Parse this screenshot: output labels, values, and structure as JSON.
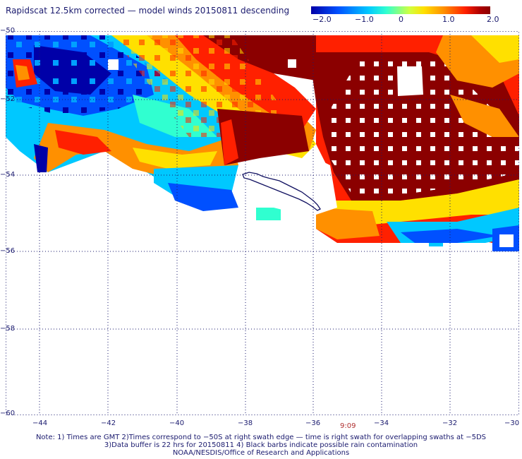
{
  "title": "Rapidscat 12.5km corrected — model winds 20150811 descending",
  "colorbar": {
    "labels": [
      "−2.0",
      "−1.0",
      "0",
      "1.0",
      "2.0"
    ],
    "range": [
      -2.0,
      2.0
    ]
  },
  "map": {
    "lon_range": [
      -45,
      -30
    ],
    "lat_range": [
      -60,
      -50
    ],
    "lon_ticks": [
      "−44",
      "−42",
      "−40",
      "−38",
      "−36",
      "−34",
      "−32",
      "−30"
    ],
    "lat_ticks": [
      "−50",
      "−52",
      "−54",
      "−56",
      "−58",
      "−60"
    ],
    "grid": "dotted",
    "coastline": "South Georgia island",
    "colors": {
      "dark_red": "#8b0000",
      "red": "#ff2000",
      "orange": "#ff9000",
      "yellow": "#ffe000",
      "cyan": "#00d0ff",
      "blue": "#0050ff",
      "dark_blue": "#0000a8"
    }
  },
  "time_label": "9:09",
  "note_lines": [
    "Note: 1) Times are GMT 2)Times correspond to −50S at right swath edge — time is right swath for overlapping swaths at −5DS",
    "3)Data buffer is 22 hrs for 20150811 4) Black barbs indicate possible rain contamination",
    "NOAA/NESDIS/Office of Research and Applications"
  ]
}
